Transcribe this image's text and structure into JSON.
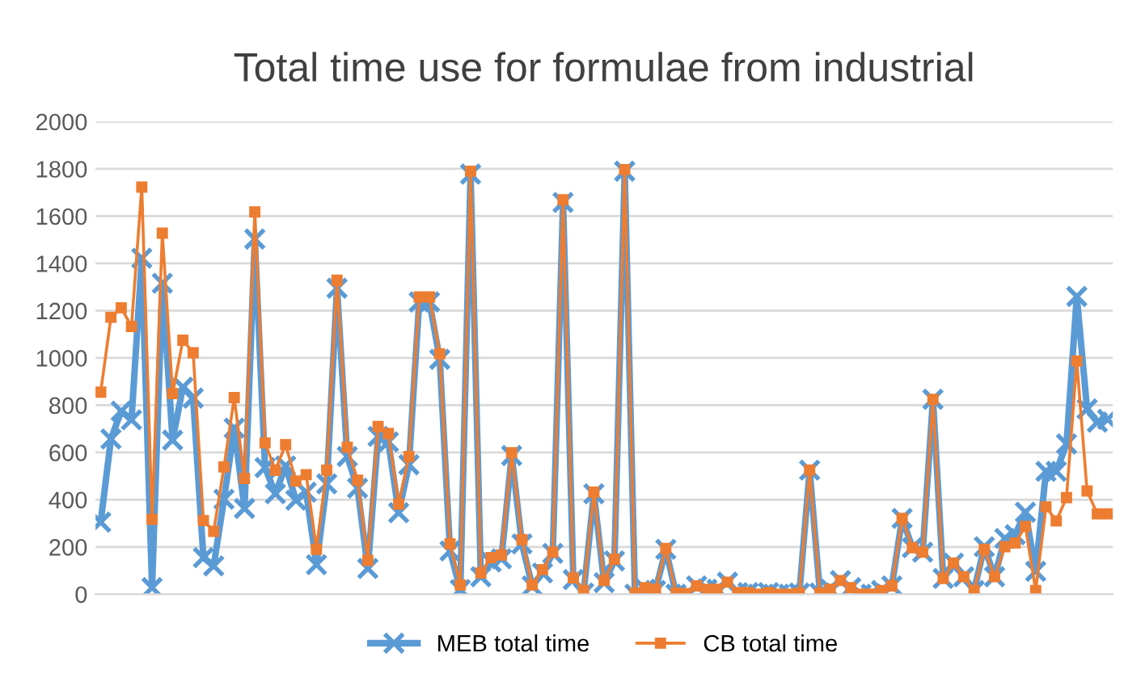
{
  "chart_data": {
    "type": "line",
    "title": "Total time use for formulae from industrial",
    "categories": [
      null,
      null,
      null,
      null,
      null,
      null,
      null,
      null,
      null,
      null,
      null,
      null,
      null,
      null,
      null,
      null,
      null,
      null,
      null,
      null,
      null,
      null,
      null,
      null,
      null,
      null,
      null,
      null,
      null,
      null,
      null,
      null,
      null,
      null,
      null,
      null,
      null,
      null,
      null,
      null,
      null,
      null,
      null,
      null,
      null,
      null,
      null,
      null,
      null,
      null,
      null,
      null,
      null,
      null,
      null,
      null,
      null,
      null,
      null,
      null,
      null,
      null,
      null,
      null,
      null,
      null,
      null,
      null,
      null,
      null,
      null,
      null,
      null,
      null,
      null,
      null,
      null,
      null,
      null,
      null,
      null,
      null,
      null,
      null,
      null,
      null,
      null,
      null,
      null,
      null,
      null,
      null,
      null,
      null,
      null,
      null,
      null,
      null,
      null
    ],
    "series": [
      {
        "name": "MEB total time",
        "color": "#5b9bd5",
        "marker": "cross",
        "values": [
          305,
          657,
          775,
          738,
          1422,
          28,
          1316,
          652,
          876,
          830,
          155,
          120,
          402,
          703,
          363,
          1503,
          536,
          425,
          543,
          398,
          432,
          125,
          467,
          1295,
          583,
          449,
          109,
          668,
          645,
          345,
          548,
          1237,
          1237,
          994,
          183,
          20,
          1778,
          74,
          136,
          150,
          587,
          213,
          35,
          90,
          173,
          1658,
          62,
          5,
          425,
          49,
          141,
          1790,
          0,
          21,
          16,
          190,
          0,
          0,
          35,
          21,
          21,
          51,
          7,
          7,
          0,
          7,
          0,
          0,
          5,
          525,
          5,
          21,
          58,
          28,
          0,
          0,
          16,
          35,
          321,
          197,
          178,
          825,
          67,
          132,
          74,
          16,
          201,
          74,
          236,
          252,
          347,
          97,
          520,
          520,
          636,
          1260,
          784,
          728,
          740
        ]
      },
      {
        "name": "CB total time",
        "color": "#ed7d31",
        "marker": "square",
        "values": [
          855,
          1172,
          1212,
          1133,
          1723,
          317,
          1528,
          849,
          1075,
          1022,
          312,
          266,
          539,
          832,
          490,
          1618,
          640,
          525,
          633,
          479,
          506,
          190,
          525,
          1329,
          622,
          483,
          143,
          710,
          680,
          381,
          583,
          1258,
          1258,
          1017,
          213,
          39,
          1790,
          90,
          155,
          166,
          599,
          231,
          39,
          104,
          178,
          1669,
          69,
          16,
          432,
          58,
          148,
          1797,
          5,
          28,
          21,
          194,
          5,
          3,
          35,
          21,
          21,
          51,
          7,
          7,
          0,
          7,
          0,
          0,
          5,
          525,
          5,
          21,
          58,
          28,
          0,
          0,
          16,
          35,
          321,
          197,
          178,
          825,
          67,
          132,
          74,
          16,
          190,
          74,
          201,
          217,
          287,
          16,
          370,
          310,
          409,
          987,
          437,
          340,
          340
        ]
      }
    ],
    "ylim": [
      0,
      2000
    ],
    "yticks": [
      0,
      200,
      400,
      600,
      800,
      1000,
      1200,
      1400,
      1600,
      1800,
      2000
    ],
    "grid": "y",
    "legend": "bottom",
    "line_style": "solid"
  }
}
